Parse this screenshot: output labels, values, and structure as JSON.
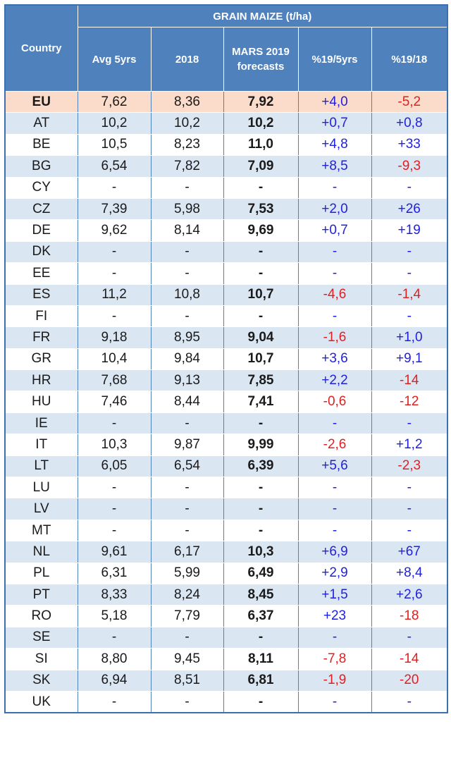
{
  "header": {
    "country": "Country",
    "group": "GRAIN MAIZE (t/ha)",
    "avg5": "Avg 5yrs",
    "y2018": "2018",
    "mars_line1": "MARS 2019",
    "mars_line2": "forecasts",
    "pct5": "%19/5yrs",
    "pct18": "%19/18"
  },
  "rows": [
    {
      "country": "EU",
      "avg": "7,62",
      "y2018": "8,36",
      "fc": "7,92",
      "p5": "+4,0",
      "p18": "-5,2"
    },
    {
      "country": "AT",
      "avg": "10,2",
      "y2018": "10,2",
      "fc": "10,2",
      "p5": "+0,7",
      "p18": "+0,8"
    },
    {
      "country": "BE",
      "avg": "10,5",
      "y2018": "8,23",
      "fc": "11,0",
      "p5": "+4,8",
      "p18": "+33"
    },
    {
      "country": "BG",
      "avg": "6,54",
      "y2018": "7,82",
      "fc": "7,09",
      "p5": "+8,5",
      "p18": "-9,3"
    },
    {
      "country": "CY",
      "avg": "-",
      "y2018": "-",
      "fc": "-",
      "p5": "-",
      "p18": "-"
    },
    {
      "country": "CZ",
      "avg": "7,39",
      "y2018": "5,98",
      "fc": "7,53",
      "p5": "+2,0",
      "p18": "+26"
    },
    {
      "country": "DE",
      "avg": "9,62",
      "y2018": "8,14",
      "fc": "9,69",
      "p5": "+0,7",
      "p18": "+19"
    },
    {
      "country": "DK",
      "avg": "-",
      "y2018": "-",
      "fc": "-",
      "p5": "-",
      "p18": "-"
    },
    {
      "country": "EE",
      "avg": "-",
      "y2018": "-",
      "fc": "-",
      "p5": "-",
      "p18": "-"
    },
    {
      "country": "ES",
      "avg": "11,2",
      "y2018": "10,8",
      "fc": "10,7",
      "p5": "-4,6",
      "p18": "-1,4"
    },
    {
      "country": "FI",
      "avg": "-",
      "y2018": "-",
      "fc": "-",
      "p5": "-",
      "p18": "-"
    },
    {
      "country": "FR",
      "avg": "9,18",
      "y2018": "8,95",
      "fc": "9,04",
      "p5": "-1,6",
      "p18": "+1,0"
    },
    {
      "country": "GR",
      "avg": "10,4",
      "y2018": "9,84",
      "fc": "10,7",
      "p5": "+3,6",
      "p18": "+9,1"
    },
    {
      "country": "HR",
      "avg": "7,68",
      "y2018": "9,13",
      "fc": "7,85",
      "p5": "+2,2",
      "p18": "-14"
    },
    {
      "country": "HU",
      "avg": "7,46",
      "y2018": "8,44",
      "fc": "7,41",
      "p5": "-0,6",
      "p18": "-12"
    },
    {
      "country": "IE",
      "avg": "-",
      "y2018": "-",
      "fc": "-",
      "p5": "-",
      "p18": "-"
    },
    {
      "country": "IT",
      "avg": "10,3",
      "y2018": "9,87",
      "fc": "9,99",
      "p5": "-2,6",
      "p18": "+1,2"
    },
    {
      "country": "LT",
      "avg": "6,05",
      "y2018": "6,54",
      "fc": "6,39",
      "p5": "+5,6",
      "p18": "-2,3"
    },
    {
      "country": "LU",
      "avg": "-",
      "y2018": "-",
      "fc": "-",
      "p5": "-",
      "p18": "-"
    },
    {
      "country": "LV",
      "avg": "-",
      "y2018": "-",
      "fc": "-",
      "p5": "-",
      "p18": "-"
    },
    {
      "country": "MT",
      "avg": "-",
      "y2018": "-",
      "fc": "-",
      "p5": "-",
      "p18": "-"
    },
    {
      "country": "NL",
      "avg": "9,61",
      "y2018": "6,17",
      "fc": "10,3",
      "p5": "+6,9",
      "p18": "+67"
    },
    {
      "country": "PL",
      "avg": "6,31",
      "y2018": "5,99",
      "fc": "6,49",
      "p5": "+2,9",
      "p18": "+8,4"
    },
    {
      "country": "PT",
      "avg": "8,33",
      "y2018": "8,24",
      "fc": "8,45",
      "p5": "+1,5",
      "p18": "+2,6"
    },
    {
      "country": "RO",
      "avg": "5,18",
      "y2018": "7,79",
      "fc": "6,37",
      "p5": "+23",
      "p18": "-18"
    },
    {
      "country": "SE",
      "avg": "-",
      "y2018": "-",
      "fc": "-",
      "p5": "-",
      "p18": "-"
    },
    {
      "country": "SI",
      "avg": "8,80",
      "y2018": "9,45",
      "fc": "8,11",
      "p5": "-7,8",
      "p18": "-14"
    },
    {
      "country": "SK",
      "avg": "6,94",
      "y2018": "8,51",
      "fc": "6,81",
      "p5": "-1,9",
      "p18": "-20"
    },
    {
      "country": "UK",
      "avg": "-",
      "y2018": "-",
      "fc": "-",
      "p5": "-",
      "p18": "-"
    }
  ],
  "colors": {
    "header_bg": "#4f81bd",
    "eu_row_bg": "#fbdccb",
    "stripe_bg": "#dbe6f3",
    "positive": "#1f1fe0",
    "negative": "#e02020"
  }
}
